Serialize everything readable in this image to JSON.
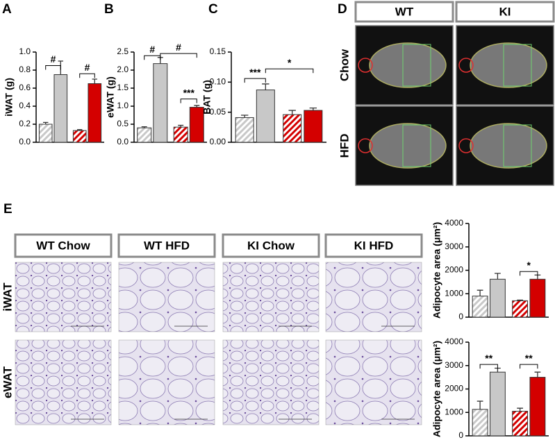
{
  "chart_data": [
    {
      "type": "bar",
      "panel": "A",
      "ylabel": "iWAT (g)",
      "categories": [
        null,
        null,
        null,
        null
      ],
      "values": [
        0.2,
        0.75,
        0.13,
        0.65
      ],
      "errors": [
        0.02,
        0.15,
        0.01,
        0.05
      ],
      "colors": [
        "#c8c8c8",
        "#c8c8c8",
        "#d40000",
        "#d40000"
      ],
      "hatched": [
        true,
        false,
        true,
        false
      ],
      "ylim": [
        0,
        1.0
      ],
      "yticks": [
        {
          "value": 0,
          "label": "0.0"
        },
        0.2,
        0.4,
        0.6,
        0.8,
        {
          "value": 1.0,
          "label": "1.0"
        }
      ],
      "annotations": [
        {
          "text": "#",
          "from": 0,
          "to": 1,
          "y": 0.85
        },
        {
          "text": "#",
          "from": 2,
          "to": 3,
          "y": 0.76
        }
      ]
    },
    {
      "type": "bar",
      "panel": "B",
      "ylabel": "eWAT (g)",
      "categories": [
        null,
        null,
        null,
        null
      ],
      "values": [
        0.4,
        2.18,
        0.42,
        0.97
      ],
      "errors": [
        0.03,
        0.17,
        0.05,
        0.05
      ],
      "colors": [
        "#c8c8c8",
        "#c8c8c8",
        "#d40000",
        "#d40000"
      ],
      "hatched": [
        true,
        false,
        true,
        false
      ],
      "ylim": [
        0,
        2.5
      ],
      "yticks": [
        {
          "value": 0,
          "label": "0.0"
        },
        0.5,
        {
          "value": 1,
          "label": "1.0"
        },
        1.5,
        {
          "value": 2,
          "label": "2.0"
        },
        2.5
      ],
      "annotations": [
        {
          "text": "#",
          "from": 0,
          "to": 1,
          "y": 2.4
        },
        {
          "text": "#",
          "from": 1,
          "to": 3,
          "y": 2.46
        },
        {
          "text": "***",
          "from": 2,
          "to": 3,
          "y": 1.2
        }
      ]
    },
    {
      "type": "bar",
      "panel": "C",
      "ylabel": "BAT (g)",
      "categories": [
        null,
        null,
        null,
        null
      ],
      "values": [
        0.041,
        0.087,
        0.046,
        0.053
      ],
      "errors": [
        0.004,
        0.01,
        0.007,
        0.004
      ],
      "colors": [
        "#c8c8c8",
        "#c8c8c8",
        "#d40000",
        "#d40000"
      ],
      "hatched": [
        true,
        false,
        true,
        false
      ],
      "ylim": [
        0,
        0.15
      ],
      "yticks": [
        {
          "value": 0,
          "label": "0.00"
        },
        0.05,
        {
          "value": 0.1,
          "label": "0.10"
        },
        0.15
      ],
      "annotations": [
        {
          "text": "***",
          "from": 0,
          "to": 1,
          "y": 0.106
        },
        {
          "text": "*",
          "from": 1,
          "to": 3,
          "y": 0.122
        }
      ]
    },
    {
      "type": "bar",
      "ylabel": "Adipocyte area (μm²)",
      "categories": [
        null,
        null,
        null,
        null
      ],
      "values": [
        900,
        1620,
        700,
        1620
      ],
      "errors": [
        250,
        250,
        30,
        180
      ],
      "colors": [
        "#c8c8c8",
        "#c8c8c8",
        "#d40000",
        "#d40000"
      ],
      "hatched": [
        true,
        false,
        true,
        false
      ],
      "ylim": [
        0,
        4000
      ],
      "yticks": [
        0,
        1000,
        2000,
        3000,
        4000
      ],
      "annotations": [
        {
          "text": "*",
          "from": 2,
          "to": 3,
          "y": 1950
        }
      ]
    },
    {
      "type": "bar",
      "ylabel": "Adipocyte area (μm²)",
      "categories": [
        null,
        null,
        null,
        null
      ],
      "values": [
        1130,
        2720,
        1050,
        2500
      ],
      "errors": [
        350,
        170,
        130,
        220
      ],
      "colors": [
        "#c8c8c8",
        "#c8c8c8",
        "#d40000",
        "#d40000"
      ],
      "hatched": [
        true,
        false,
        true,
        false
      ],
      "ylim": [
        0,
        4000
      ],
      "yticks": [
        0,
        1000,
        2000,
        3000,
        4000
      ],
      "annotations": [
        {
          "text": "**",
          "from": 0,
          "to": 1,
          "y": 3050
        },
        {
          "text": "**",
          "from": 2,
          "to": 3,
          "y": 3050
        }
      ]
    }
  ],
  "imaging": {
    "panel": "D",
    "columns": [
      "WT",
      "KI"
    ],
    "rows": [
      "Chow",
      "HFD"
    ]
  },
  "histology": {
    "panel": "E",
    "columns": [
      "WT Chow",
      "WT HFD",
      "KI Chow",
      "KI HFD"
    ],
    "rows": [
      "iWAT",
      "eWAT"
    ]
  }
}
